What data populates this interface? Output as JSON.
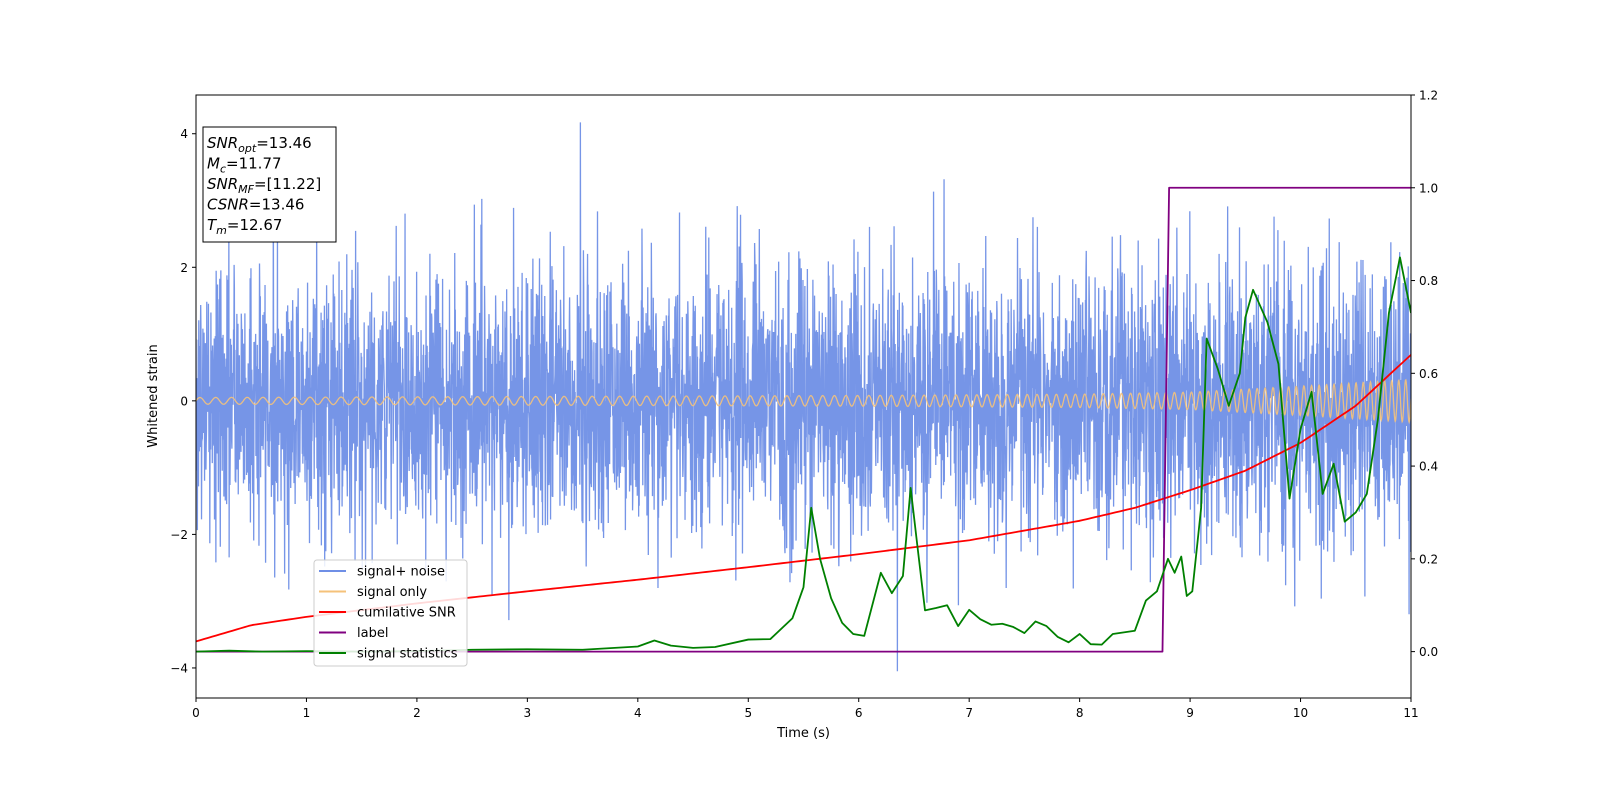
{
  "chart_data": {
    "type": "line",
    "xlabel": "Time (s)",
    "ylabel": "Whitened strain",
    "xlim": [
      0,
      11
    ],
    "ylim": [
      -4.45,
      4.58
    ],
    "y2lim": [
      -0.1,
      1.2
    ],
    "x_ticks": [
      0,
      1,
      2,
      3,
      4,
      5,
      6,
      7,
      8,
      9,
      10,
      11
    ],
    "y_ticks": [
      -4,
      -2,
      0,
      2,
      4
    ],
    "y2_ticks": [
      "0.0",
      "0.2",
      "0.4",
      "0.6",
      "0.8",
      "1.0",
      "1.2"
    ],
    "grid": false,
    "legend_position": "lower-left",
    "annotation_box": {
      "position": "top-left",
      "lines": [
        {
          "name": "SNR",
          "sub": "opt",
          "value": "=13.46"
        },
        {
          "name": "M",
          "sub": "c",
          "value": "=11.77"
        },
        {
          "name": "SNR",
          "sub": "MF",
          "value": "=[11.22]"
        },
        {
          "name": "CSNR",
          "sub": "",
          "value": "=13.46"
        },
        {
          "name": "T",
          "sub": "m",
          "value": "=12.67"
        }
      ]
    },
    "series": [
      {
        "name": "signal+ noise",
        "color": "#6f8fe6",
        "axis": "left",
        "kind": "noise",
        "amplitude_sd": 1.0,
        "max_value": 4.17,
        "min_value": -4.05,
        "min_x": 6.35
      },
      {
        "name": "signal only",
        "color": "#f5c27a",
        "axis": "left",
        "kind": "chirp",
        "envelope_x": [
          0,
          2,
          4,
          6,
          8,
          9,
          10,
          11
        ],
        "envelope_y": [
          0.05,
          0.06,
          0.07,
          0.08,
          0.1,
          0.13,
          0.22,
          0.32
        ]
      },
      {
        "name": "cumilative SNR",
        "color": "#ff0000",
        "axis": "right",
        "x": [
          0,
          0.5,
          1,
          2,
          3,
          4,
          5,
          6,
          7,
          8,
          8.5,
          9,
          9.5,
          10,
          10.5,
          11
        ],
        "y": [
          0.022,
          0.057,
          0.075,
          0.104,
          0.13,
          0.155,
          0.182,
          0.21,
          0.24,
          0.282,
          0.31,
          0.348,
          0.39,
          0.45,
          0.53,
          0.64
        ]
      },
      {
        "name": "label",
        "color": "#800080",
        "axis": "right",
        "x": [
          0,
          8.75,
          8.81,
          11
        ],
        "y": [
          0,
          0,
          1,
          1
        ]
      },
      {
        "name": "signal statistics",
        "color": "#008000",
        "axis": "right",
        "x": [
          0,
          0.3,
          0.6,
          1,
          1.5,
          2,
          2.5,
          3,
          3.5,
          4,
          4.15,
          4.3,
          4.5,
          4.7,
          5,
          5.2,
          5.4,
          5.5,
          5.57,
          5.65,
          5.75,
          5.85,
          5.95,
          6.05,
          6.2,
          6.3,
          6.4,
          6.47,
          6.53,
          6.6,
          6.7,
          6.8,
          6.9,
          7.0,
          7.1,
          7.2,
          7.3,
          7.4,
          7.5,
          7.6,
          7.7,
          7.8,
          7.9,
          8.0,
          8.1,
          8.2,
          8.3,
          8.5,
          8.6,
          8.7,
          8.8,
          8.86,
          8.92,
          8.97,
          9.02,
          9.1,
          9.15,
          9.25,
          9.35,
          9.45,
          9.5,
          9.57,
          9.7,
          9.8,
          9.9,
          10.0,
          10.1,
          10.2,
          10.3,
          10.4,
          10.5,
          10.6,
          10.7,
          10.8,
          10.9,
          11.0
        ],
        "y": [
          0.0,
          0.002,
          0.0,
          0.001,
          0.0,
          0.001,
          0.004,
          0.005,
          0.004,
          0.011,
          0.024,
          0.013,
          0.008,
          0.01,
          0.026,
          0.027,
          0.072,
          0.139,
          0.31,
          0.2,
          0.115,
          0.062,
          0.038,
          0.034,
          0.17,
          0.126,
          0.163,
          0.353,
          0.23,
          0.089,
          0.094,
          0.1,
          0.055,
          0.09,
          0.07,
          0.058,
          0.06,
          0.053,
          0.04,
          0.065,
          0.055,
          0.032,
          0.02,
          0.038,
          0.016,
          0.015,
          0.038,
          0.045,
          0.11,
          0.13,
          0.2,
          0.17,
          0.205,
          0.12,
          0.13,
          0.31,
          0.675,
          0.61,
          0.53,
          0.6,
          0.72,
          0.78,
          0.71,
          0.62,
          0.33,
          0.48,
          0.56,
          0.34,
          0.405,
          0.28,
          0.3,
          0.34,
          0.5,
          0.73,
          0.85,
          0.73
        ]
      }
    ]
  }
}
